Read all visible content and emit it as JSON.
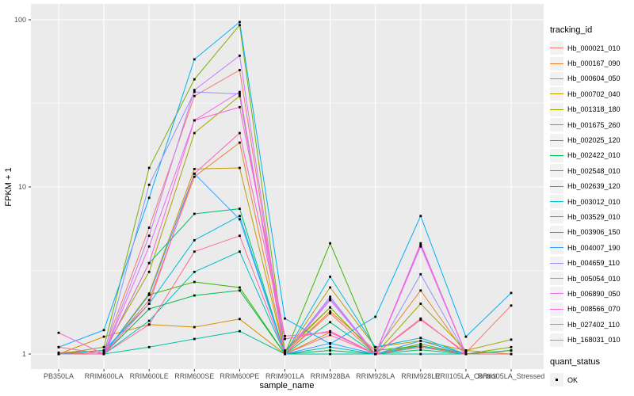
{
  "chart_data": {
    "type": "line",
    "title": "",
    "xlabel": "sample_name",
    "ylabel": "FPKM + 1",
    "y_scale": "log10",
    "y_ticks": [
      1,
      10,
      100
    ],
    "y_tick_labels": [
      "1",
      "10",
      "100"
    ],
    "ylim": [
      0.81,
      123
    ],
    "grid": "white-on-gray-panel",
    "panel_bg": "#EBEBEB",
    "grid_color": "#FFFFFF",
    "tick_text_color": "#4D4D4D",
    "marker_color": "#000000",
    "marker_shape": "square",
    "legend_position": "right",
    "legend_titles": {
      "tracking": "tracking_id",
      "quant": "quant_status"
    },
    "quant_status_items": [
      {
        "label": "OK",
        "marker": "black-square"
      }
    ],
    "categories": [
      "PB350LA",
      "RRIM600LA",
      "RRIM600LE",
      "RRIM600SE",
      "RRIM600PE",
      "RRIM901LA",
      "RRIM928BA",
      "RRIM928LA",
      "RRIM928LE",
      "RRII105LA_Control",
      "RRII105LA_Stressed"
    ],
    "series": [
      {
        "name": "Hb_000021_010",
        "color": "#F8766D",
        "values": [
          1.02,
          1.05,
          5.7,
          35,
          50,
          1.0,
          1.75,
          1.0,
          1.6,
          1.02,
          1.95
        ]
      },
      {
        "name": "Hb_000167_090",
        "color": "#EA8331",
        "values": [
          1.0,
          1.02,
          2.1,
          11.5,
          18.4,
          1.0,
          1.8,
          1.05,
          2.4,
          1.0,
          1.05
        ]
      },
      {
        "name": "Hb_000604_050",
        "color": "#D89000",
        "values": [
          1.0,
          1.27,
          1.5,
          1.45,
          1.62,
          1.0,
          1.35,
          1.0,
          1.1,
          1.0,
          1.0
        ]
      },
      {
        "name": "Hb_000702_040",
        "color": "#C09B00",
        "values": [
          1.0,
          1.0,
          2.3,
          12.8,
          13,
          1.0,
          2.5,
          1.1,
          1.2,
          1.05,
          1.0
        ]
      },
      {
        "name": "Hb_001318_180",
        "color": "#A3A500",
        "values": [
          1.0,
          1.05,
          3.1,
          21,
          35,
          1.02,
          1.9,
          1.0,
          2.0,
          1.05,
          1.22
        ]
      },
      {
        "name": "Hb_001675_260",
        "color": "#7CAE00",
        "values": [
          1.0,
          1.1,
          13,
          44,
          93,
          1.05,
          1.9,
          1.0,
          1.15,
          1.0,
          1.1
        ]
      },
      {
        "name": "Hb_002025_120",
        "color": "#39B600",
        "values": [
          1.0,
          1.0,
          2.26,
          2.7,
          2.5,
          1.0,
          4.6,
          1.05,
          1.12,
          1.0,
          1.0
        ]
      },
      {
        "name": "Hb_002422_010",
        "color": "#00BB4E",
        "values": [
          1.0,
          1.0,
          1.86,
          2.24,
          2.4,
          1.0,
          1.05,
          1.0,
          1.1,
          1.0,
          1.05
        ]
      },
      {
        "name": "Hb_002548_010",
        "color": "#00BF7D",
        "values": [
          1.0,
          1.0,
          3.5,
          6.9,
          7.4,
          1.0,
          1.55,
          1.0,
          1.06,
          1.0,
          1.0
        ]
      },
      {
        "name": "Hb_002639_120",
        "color": "#00C1A3",
        "values": [
          1.0,
          1.0,
          1.1,
          1.23,
          1.37,
          1.0,
          1.0,
          1.0,
          1.0,
          1.0,
          1.0
        ]
      },
      {
        "name": "Hb_003012_010",
        "color": "#00BFC4",
        "values": [
          1.0,
          1.0,
          1.58,
          3.1,
          4.1,
          1.0,
          1.1,
          1.0,
          1.12,
          1.0,
          1.0
        ]
      },
      {
        "name": "Hb_003529_010",
        "color": "#00BAE0",
        "values": [
          1.0,
          1.05,
          2.0,
          4.8,
          6.7,
          1.0,
          2.9,
          1.1,
          1.25,
          1.0,
          1.0
        ]
      },
      {
        "name": "Hb_003906_150",
        "color": "#00B0F6",
        "values": [
          1.1,
          1.39,
          8.6,
          58,
          97,
          1.63,
          1.15,
          1.67,
          6.7,
          1.27,
          2.32
        ]
      },
      {
        "name": "Hb_004007_190",
        "color": "#35A2FF",
        "values": [
          1.0,
          1.0,
          2.26,
          12,
          6.4,
          1.0,
          1.16,
          1.0,
          1.2,
          1.0,
          1.0
        ]
      },
      {
        "name": "Hb_004659_110",
        "color": "#9590FF",
        "values": [
          1.0,
          1.0,
          10.3,
          37,
          36,
          1.0,
          2.2,
          1.0,
          3.0,
          1.0,
          1.0
        ]
      },
      {
        "name": "Hb_005054_010",
        "color": "#C77CFF",
        "values": [
          1.0,
          1.0,
          5.1,
          38,
          61,
          1.0,
          2.1,
          1.0,
          4.4,
          1.0,
          1.0
        ]
      },
      {
        "name": "Hb_006890_050",
        "color": "#E76BF3",
        "values": [
          1.0,
          1.0,
          4.4,
          25,
          37,
          1.0,
          2.15,
          1.0,
          4.5,
          1.0,
          1.0
        ]
      },
      {
        "name": "Hb_008566_070",
        "color": "#FA62DB",
        "values": [
          1.34,
          1.0,
          3.5,
          25,
          30,
          1.28,
          1.35,
          1.0,
          4.6,
          1.0,
          1.0
        ]
      },
      {
        "name": "Hb_027402_110",
        "color": "#FF62BC",
        "values": [
          1.0,
          1.0,
          2.0,
          12,
          21,
          1.23,
          1.37,
          1.0,
          1.63,
          1.0,
          1.0
        ]
      },
      {
        "name": "Hb_168031_010",
        "color": "#FF6A98",
        "values": [
          1.1,
          1.0,
          1.5,
          4.1,
          5.1,
          1.0,
          1.3,
          1.0,
          1.1,
          1.0,
          1.0
        ]
      }
    ]
  }
}
